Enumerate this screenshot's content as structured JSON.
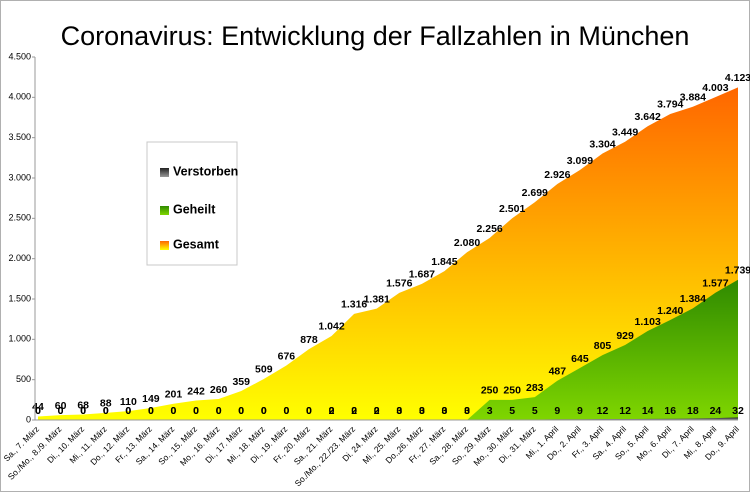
{
  "chart_data": {
    "type": "area",
    "title": "Coronavirus: Entwicklung der Fallzahlen in München",
    "categories": [
      "Sa., 7. März",
      "So./Mo., 8./9. März",
      "Di., 10. März",
      "Mi., 11. März",
      "Do., 12. März",
      "Fr., 13. März",
      "Sa., 14. März",
      "So., 15. März",
      "Mo., 16. März",
      "Di., 17. März",
      "Mi., 18. März",
      "Di., 19. März",
      "Fr., 20. März",
      "Sa., 21. März",
      "So./Mo., 22./23. März",
      "Di. 24. März",
      "Mi., 25. März",
      "Do.,26. März",
      "Fr., 27. März",
      "Sa., 28. März",
      "So., 29. März",
      "Mo., 30. März",
      "Di., 31. März",
      "Mi., 1. April",
      "Do., 2. April",
      "Fr., 3. April",
      "Sa., 4. April",
      "So., 5. April",
      "Mo., 6. April",
      "Di., 7. April",
      "Mi., 8. April",
      "Do., 9. April"
    ],
    "series": [
      {
        "name": "Gesamt",
        "gradient": [
          "#ffff00",
          "#ff6600"
        ],
        "values": [
          44,
          60,
          68,
          88,
          110,
          149,
          201,
          242,
          260,
          359,
          509,
          676,
          878,
          1042,
          1316,
          1381,
          1576,
          1687,
          1845,
          2080,
          2256,
          2501,
          2699,
          2926,
          3099,
          3304,
          3449,
          3642,
          3794,
          3884,
          4003,
          4123
        ],
        "value_labels": [
          "44",
          "60",
          "68",
          "88",
          "110",
          "149",
          "201",
          "242",
          "260",
          "359",
          "509",
          "676",
          "878",
          "1.042",
          "1.316",
          "1.381",
          "1.576",
          "1.687",
          "1.845",
          "2.080",
          "2.256",
          "2.501",
          "2.699",
          "2.926",
          "3.099",
          "3.304",
          "3.449",
          "3.642",
          "3.794",
          "3.884",
          "4.003",
          "4.123"
        ]
      },
      {
        "name": "Geheilt",
        "gradient": [
          "#7fd600",
          "#2f8a00"
        ],
        "values": [
          0,
          0,
          0,
          0,
          0,
          0,
          0,
          0,
          0,
          0,
          0,
          0,
          0,
          0,
          0,
          0,
          0,
          0,
          0,
          0,
          250,
          250,
          283,
          487,
          645,
          805,
          929,
          1103,
          1240,
          1384,
          1577,
          1739
        ],
        "value_labels": [
          "0",
          "0",
          "0",
          "0",
          "0",
          "0",
          "0",
          "0",
          "0",
          "0",
          "0",
          "0",
          "0",
          "0",
          "0",
          "0",
          "0",
          "0",
          "0",
          "0",
          "250",
          "250",
          "283",
          "487",
          "645",
          "805",
          "929",
          "1.103",
          "1.240",
          "1.384",
          "1.577",
          "1.739"
        ]
      },
      {
        "name": "Verstorben",
        "gradient": [
          "#999999",
          "#222222"
        ],
        "values": [
          0,
          0,
          0,
          0,
          0,
          0,
          0,
          0,
          0,
          0,
          0,
          0,
          0,
          2,
          2,
          2,
          3,
          3,
          3,
          3,
          3,
          5,
          5,
          9,
          9,
          12,
          12,
          14,
          16,
          18,
          24,
          32
        ]
      }
    ],
    "ylim": [
      0,
      4500
    ],
    "yticks": [
      0,
      500,
      {
        "value": 1000,
        "label": "1.000"
      },
      {
        "value": 1500,
        "label": "1.500"
      },
      {
        "value": 2000,
        "label": "2.000"
      },
      {
        "value": 2500,
        "label": "2.500"
      },
      {
        "value": 3000,
        "label": "3.000"
      },
      {
        "value": 3500,
        "label": "3.500"
      },
      {
        "value": 4000,
        "label": "4.000"
      },
      {
        "value": 4500,
        "label": "4.500"
      }
    ],
    "grid": false
  }
}
